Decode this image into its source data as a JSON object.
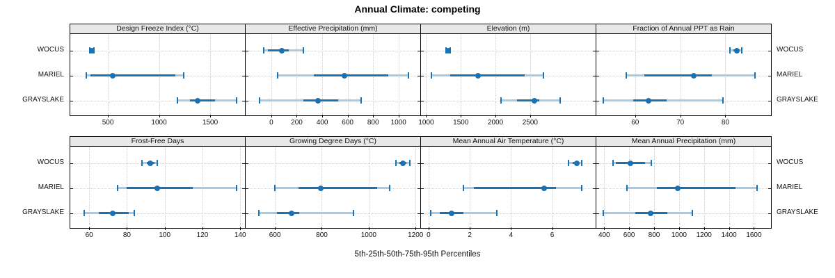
{
  "title": "Annual Climate: competing",
  "caption": "5th-25th-50th-75th-95th Percentiles",
  "colors": {
    "interval_dark": "#1b72b3",
    "interval_light": "#a6cbe3",
    "strip_bg": "#e8e8e8",
    "grid": "#c9c9c9",
    "border": "#000000"
  },
  "chart_data": {
    "type": "scatter",
    "subtype": "trellis-percentile-interval-dotplot",
    "percentile_levels": [
      5,
      25,
      50,
      75,
      95
    ],
    "legend_note": "dark segment = 25th-75th, light segments = 5th-25th and 75th-95th, dot = median, caps at 5th/95th",
    "sites_top_to_bottom": [
      "WOCUS",
      "MARIEL",
      "GRAYSLAKE"
    ],
    "grid": "2 rows x 4 columns",
    "panels": [
      {
        "title": "Design Freeze Index (°C)",
        "ticks": [
          500,
          1000,
          1500
        ],
        "tick_labels": [
          "500",
          "1000",
          "1500"
        ],
        "range": [
          132,
          1840
        ],
        "values": {
          "WOCUS": [
            320,
            330,
            340,
            352,
            365
          ],
          "MARIEL": [
            290,
            330,
            550,
            1160,
            1240
          ],
          "GRAYSLAKE": [
            1180,
            1300,
            1375,
            1545,
            1760
          ]
        }
      },
      {
        "title": "Effective Precipitation (mm)",
        "ticks": [
          0,
          200,
          400,
          600,
          800,
          1000
        ],
        "tick_labels": [
          "0",
          "200",
          "400",
          "600",
          "800",
          "1000"
        ],
        "range": [
          -202,
          1171
        ],
        "values": {
          "WOCUS": [
            -60,
            -25,
            80,
            135,
            250
          ],
          "MARIEL": [
            50,
            335,
            575,
            920,
            1080
          ],
          "GRAYSLAKE": [
            -95,
            250,
            365,
            525,
            705
          ]
        }
      },
      {
        "title": "Elevation (m)",
        "ticks": [
          1000,
          1500,
          2000,
          2500
        ],
        "tick_labels": [
          "1000",
          "1500",
          "2000",
          "2500"
        ],
        "range": [
          925,
          3445
        ],
        "values": {
          "WOCUS": [
            1290,
            1300,
            1315,
            1330,
            1345
          ],
          "MARIEL": [
            1075,
            1345,
            1750,
            2425,
            2690
          ],
          "GRAYSLAKE": [
            2075,
            2310,
            2560,
            2630,
            2935
          ]
        }
      },
      {
        "title": "Fraction of Annual PPT as Rain",
        "ticks": [
          60,
          70,
          80
        ],
        "tick_labels": [
          "60",
          "70",
          "80"
        ],
        "range": [
          51.4,
          90.1
        ],
        "values": {
          "WOCUS": [
            81.0,
            81.8,
            82.6,
            83.2,
            83.7
          ],
          "MARIEL": [
            58,
            62,
            73,
            77,
            86.5
          ],
          "GRAYSLAKE": [
            53,
            59.5,
            63,
            67,
            79.5
          ]
        }
      },
      {
        "title": "Frost-Free Days",
        "ticks": [
          60,
          80,
          100,
          120,
          140
        ],
        "tick_labels": [
          "60",
          "80",
          "100",
          "120",
          "140"
        ],
        "range": [
          50,
          142.5
        ],
        "values": {
          "WOCUS": [
            88,
            90.5,
            92.5,
            94.5,
            96
          ],
          "MARIEL": [
            75,
            80,
            96,
            115,
            138
          ],
          "GRAYSLAKE": [
            57.5,
            65,
            72.5,
            81,
            84
          ]
        }
      },
      {
        "title": "Growing Degree Days (°C)",
        "ticks": [
          600,
          800,
          1000,
          1200
        ],
        "tick_labels": [
          "600",
          "800",
          "1000",
          "1200"
        ],
        "range": [
          475,
          1220
        ],
        "values": {
          "WOCUS": [
            1115,
            1130,
            1145,
            1160,
            1175
          ],
          "MARIEL": [
            600,
            700,
            795,
            1035,
            1090
          ],
          "GRAYSLAKE": [
            530,
            610,
            670,
            705,
            935
          ]
        }
      },
      {
        "title": "Mean Annual Air Temperature (°C)",
        "ticks": [
          0,
          2,
          4,
          6
        ],
        "tick_labels": [
          "0",
          "2",
          "4",
          "6"
        ],
        "range": [
          -0.37,
          8.11
        ],
        "values": {
          "WOCUS": [
            6.8,
            7.0,
            7.2,
            7.3,
            7.45
          ],
          "MARIEL": [
            1.7,
            2.2,
            5.6,
            6.2,
            7.45
          ],
          "GRAYSLAKE": [
            0.1,
            0.55,
            1.1,
            1.7,
            3.3
          ]
        }
      },
      {
        "title": "Mean Annual Precipitation (mm)",
        "ticks": [
          400,
          600,
          800,
          1000,
          1200,
          1400,
          1600
        ],
        "tick_labels": [
          "400",
          "600",
          "800",
          "1000",
          "1200",
          "1400",
          "1600"
        ],
        "range": [
          337,
          1737
        ],
        "values": {
          "WOCUS": [
            470,
            495,
            610,
            730,
            780
          ],
          "MARIEL": [
            585,
            820,
            990,
            1450,
            1625
          ],
          "GRAYSLAKE": [
            390,
            650,
            770,
            905,
            1105
          ]
        }
      }
    ]
  }
}
